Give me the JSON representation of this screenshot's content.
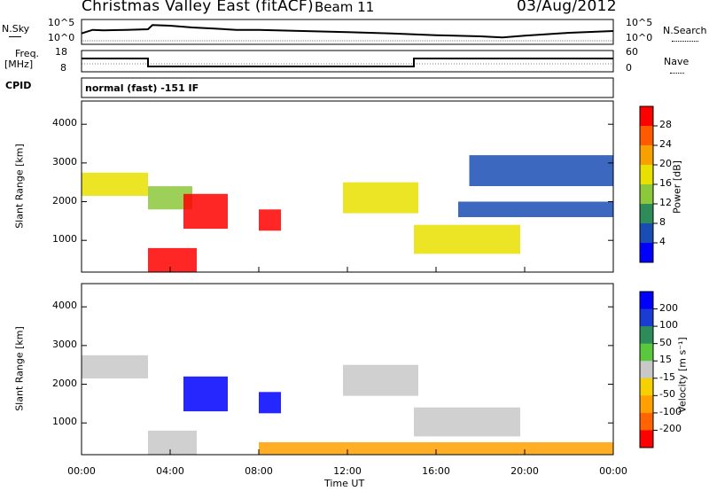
{
  "header": {
    "title": "Christmas Valley East (fitACF)",
    "beam": "Beam 11",
    "date": "03/Aug/2012"
  },
  "noise_panel": {
    "left_label": "N.Sky",
    "right_label": "N.Search",
    "left_ticks": [
      "10^5",
      "10^0"
    ],
    "right_ticks": [
      "10^5",
      "10^0"
    ]
  },
  "freq_panel": {
    "left_label_line1": "Freq.",
    "left_label_line2": "[MHz]",
    "right_label": "Nave",
    "left_ticks": [
      "18",
      "8"
    ],
    "right_ticks": [
      "60",
      "0"
    ]
  },
  "cpid": {
    "label": "CPID",
    "mode": "normal (fast) -151 IF"
  },
  "power_colorbar": {
    "label": "Power [dB]",
    "ticks": [
      "28",
      "24",
      "20",
      "16",
      "12",
      "8",
      "4"
    ],
    "colors": [
      "#ff0000",
      "#ff5a00",
      "#f7a000",
      "#e8e000",
      "#8cc83c",
      "#2e8c5a",
      "#1a4db4",
      "#0000ff"
    ]
  },
  "velocity_colorbar": {
    "label": "Velocity [m s⁻¹]",
    "ticks": [
      "200",
      "100",
      "50",
      "15",
      "-15",
      "-50",
      "-100",
      "-200"
    ],
    "colors": [
      "#0000ff",
      "#1a3cd2",
      "#2e8c5a",
      "#5ac83c",
      "#c8c8c8",
      "#f7d000",
      "#ffa000",
      "#ff6400",
      "#ff0000"
    ]
  },
  "x_axis": {
    "label": "Time UT",
    "ticks": [
      "00:00",
      "04:00",
      "08:00",
      "12:00",
      "16:00",
      "20:00",
      "00:00"
    ]
  },
  "chart_data": [
    {
      "type": "line",
      "name": "noise",
      "ylabel": "N.Sky",
      "x_hours": [
        0,
        0.5,
        1,
        2,
        3,
        3.2,
        4,
        5,
        6,
        7,
        8,
        10,
        12,
        14,
        16,
        18,
        19,
        20,
        22,
        24
      ],
      "values_log10": [
        2.6,
        3.2,
        3.1,
        3.2,
        3.3,
        4.0,
        3.9,
        3.6,
        3.4,
        3.2,
        3.2,
        3.0,
        2.8,
        2.6,
        2.3,
        2.1,
        1.9,
        2.2,
        2.7,
        3.0
      ]
    },
    {
      "type": "line",
      "name": "frequency",
      "ylabel": "Freq. [MHz]",
      "ylim": [
        8,
        18
      ],
      "x_hours": [
        0,
        3,
        3,
        15,
        15,
        24
      ],
      "values": [
        14.5,
        14.5,
        10.0,
        10.0,
        14.5,
        14.5
      ]
    },
    {
      "type": "heatmap",
      "name": "power",
      "xlabel": "Time UT",
      "ylabel": "Slant Range [km]",
      "xlim_hours": [
        0,
        24
      ],
      "ylim": [
        180,
        4600
      ],
      "regions": [
        {
          "t0": 0.0,
          "t1": 3.0,
          "r0": 2150,
          "r1": 2750,
          "level": 16
        },
        {
          "t0": 3.0,
          "t1": 5.2,
          "r0": 180,
          "r1": 800,
          "level": 32
        },
        {
          "t0": 3.0,
          "t1": 5.0,
          "r0": 1800,
          "r1": 2400,
          "level": 12
        },
        {
          "t0": 4.6,
          "t1": 6.6,
          "r0": 1300,
          "r1": 2200,
          "level": 30
        },
        {
          "t0": 8.0,
          "t1": 9.0,
          "r0": 1250,
          "r1": 1800,
          "level": 28
        },
        {
          "t0": 11.8,
          "t1": 15.2,
          "r0": 1700,
          "r1": 2500,
          "level": 18
        },
        {
          "t0": 15.0,
          "t1": 19.8,
          "r0": 650,
          "r1": 1400,
          "level": 18
        },
        {
          "t0": 17.0,
          "t1": 24.0,
          "r0": 1600,
          "r1": 2000,
          "level": 6
        },
        {
          "t0": 17.5,
          "t1": 24.0,
          "r0": 2400,
          "r1": 3200,
          "level": 5
        }
      ]
    },
    {
      "type": "heatmap",
      "name": "velocity",
      "xlabel": "Time UT",
      "ylabel": "Slant Range [km]",
      "xlim_hours": [
        0,
        24
      ],
      "ylim": [
        180,
        4600
      ],
      "regions": [
        {
          "t0": 0.0,
          "t1": 3.0,
          "r0": 2150,
          "r1": 2750,
          "level": 0
        },
        {
          "t0": 3.0,
          "t1": 5.2,
          "r0": 180,
          "r1": 800,
          "level": 0
        },
        {
          "t0": 4.6,
          "t1": 6.6,
          "r0": 1300,
          "r1": 2200,
          "level": 220
        },
        {
          "t0": 8.0,
          "t1": 9.0,
          "r0": 1250,
          "r1": 1800,
          "level": 220
        },
        {
          "t0": 11.8,
          "t1": 15.2,
          "r0": 1700,
          "r1": 2500,
          "level": 0
        },
        {
          "t0": 15.0,
          "t1": 19.8,
          "r0": 650,
          "r1": 1400,
          "level": 0
        },
        {
          "t0": 8.0,
          "t1": 24.0,
          "r0": 180,
          "r1": 500,
          "level": -80
        }
      ]
    }
  ]
}
